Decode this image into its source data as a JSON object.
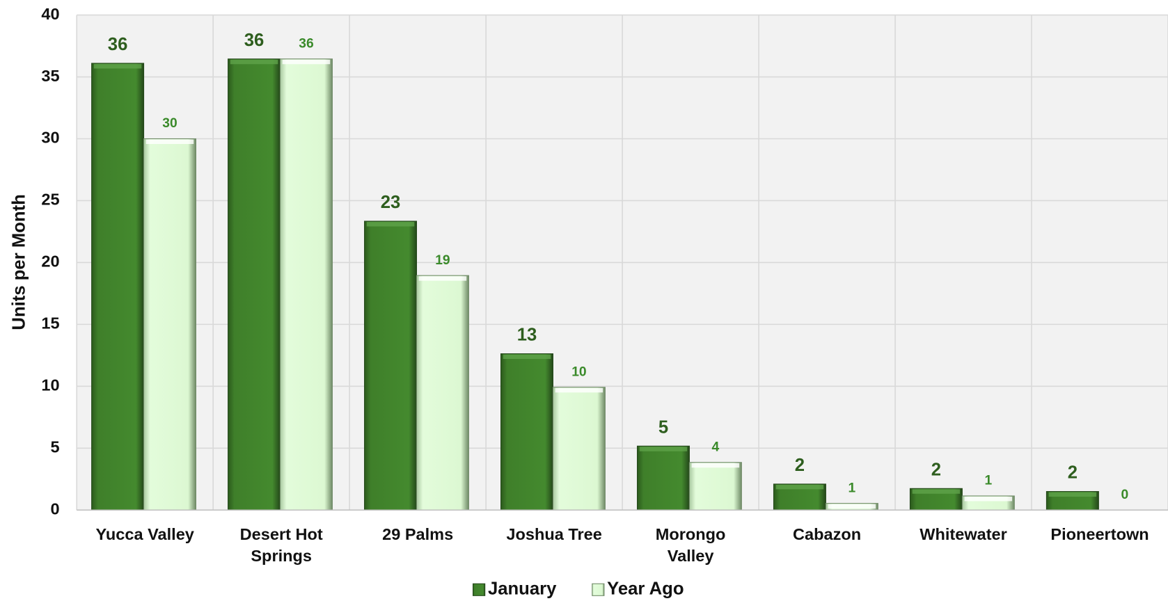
{
  "chart_data": {
    "type": "bar",
    "y_label": "Units per Month",
    "categories": [
      "Yucca Valley",
      "Desert Hot Springs",
      "29 Palms",
      "Joshua Tree",
      "Morongo Valley",
      "Cabazon",
      "Whitewater",
      "Pioneertown"
    ],
    "series": [
      {
        "name": "January",
        "color": "#3f7f2a",
        "values": [
          36.1,
          36.45,
          23.34,
          12.63,
          5.17,
          2.1,
          1.74,
          1.5
        ],
        "value_labels": [
          "36",
          "36",
          "23",
          "13",
          "5",
          "2",
          "2",
          "2"
        ]
      },
      {
        "name": "Year Ago",
        "color": "#dcf8d2",
        "values": [
          30.0,
          36.45,
          18.95,
          9.92,
          3.85,
          0.54,
          1.14,
          0
        ],
        "value_labels": [
          "30",
          "36",
          "19",
          "10",
          "4",
          "1",
          "1",
          "0"
        ]
      }
    ],
    "ylim": [
      0,
      40
    ],
    "yticks": [
      0,
      5,
      10,
      15,
      20,
      25,
      30,
      35,
      40
    ],
    "grid": true,
    "legend": "bottom"
  }
}
